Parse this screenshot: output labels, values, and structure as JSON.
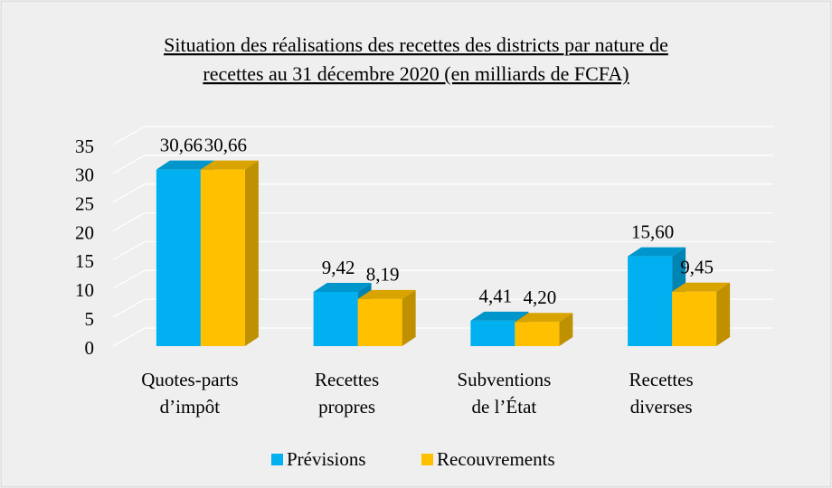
{
  "chart_data": {
    "type": "bar3d",
    "title": [
      "Situation des réalisations des recettes des districts par nature de",
      "recettes au 31 décembre 2020 (en milliards de FCFA)"
    ],
    "categories": [
      [
        "Quotes-parts",
        "d’impôt"
      ],
      [
        "Recettes",
        "propres"
      ],
      [
        "Subventions",
        "de l’État"
      ],
      [
        "Recettes",
        "diverses"
      ]
    ],
    "series": [
      {
        "name": "Prévisions",
        "color": "#00b0f0",
        "values": [
          30.66,
          9.42,
          4.41,
          15.6
        ],
        "value_labels": [
          "30,66",
          "9,42",
          "4,41",
          "15,60"
        ]
      },
      {
        "name": "Recouvrements",
        "color": "#ffc000",
        "values": [
          30.66,
          8.19,
          4.2,
          9.45
        ],
        "value_labels": [
          "30,66",
          "8,19",
          "4,20",
          "9,45"
        ]
      }
    ],
    "ylim": [
      0,
      35
    ],
    "yticks": [
      0,
      5,
      10,
      15,
      20,
      25,
      30,
      35
    ],
    "grid": true,
    "legend": "bottom"
  }
}
